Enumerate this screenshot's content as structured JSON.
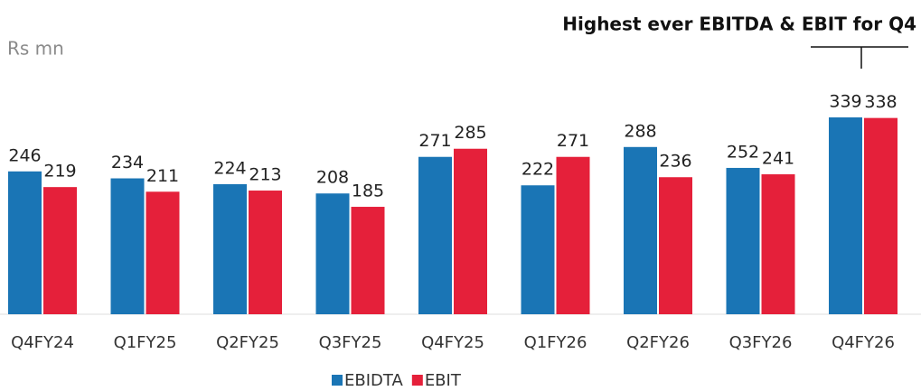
{
  "chart_data": {
    "type": "bar",
    "annotation": "Highest ever EBITDA & EBIT for Q4",
    "unit_label": "Rs mn",
    "categories": [
      "Q4FY24",
      "Q1FY25",
      "Q2FY25",
      "Q3FY25",
      "Q4FY25",
      "Q1FY26",
      "Q2FY26",
      "Q3FY26",
      "Q4FY26"
    ],
    "series": [
      {
        "name": "EBIDTA",
        "color": "#1a75b5",
        "values": [
          246,
          234,
          224,
          208,
          271,
          222,
          288,
          252,
          339
        ]
      },
      {
        "name": "EBIT",
        "color": "#e5203a",
        "values": [
          219,
          211,
          213,
          185,
          285,
          271,
          236,
          241,
          338
        ]
      }
    ],
    "legend": "bottom"
  }
}
